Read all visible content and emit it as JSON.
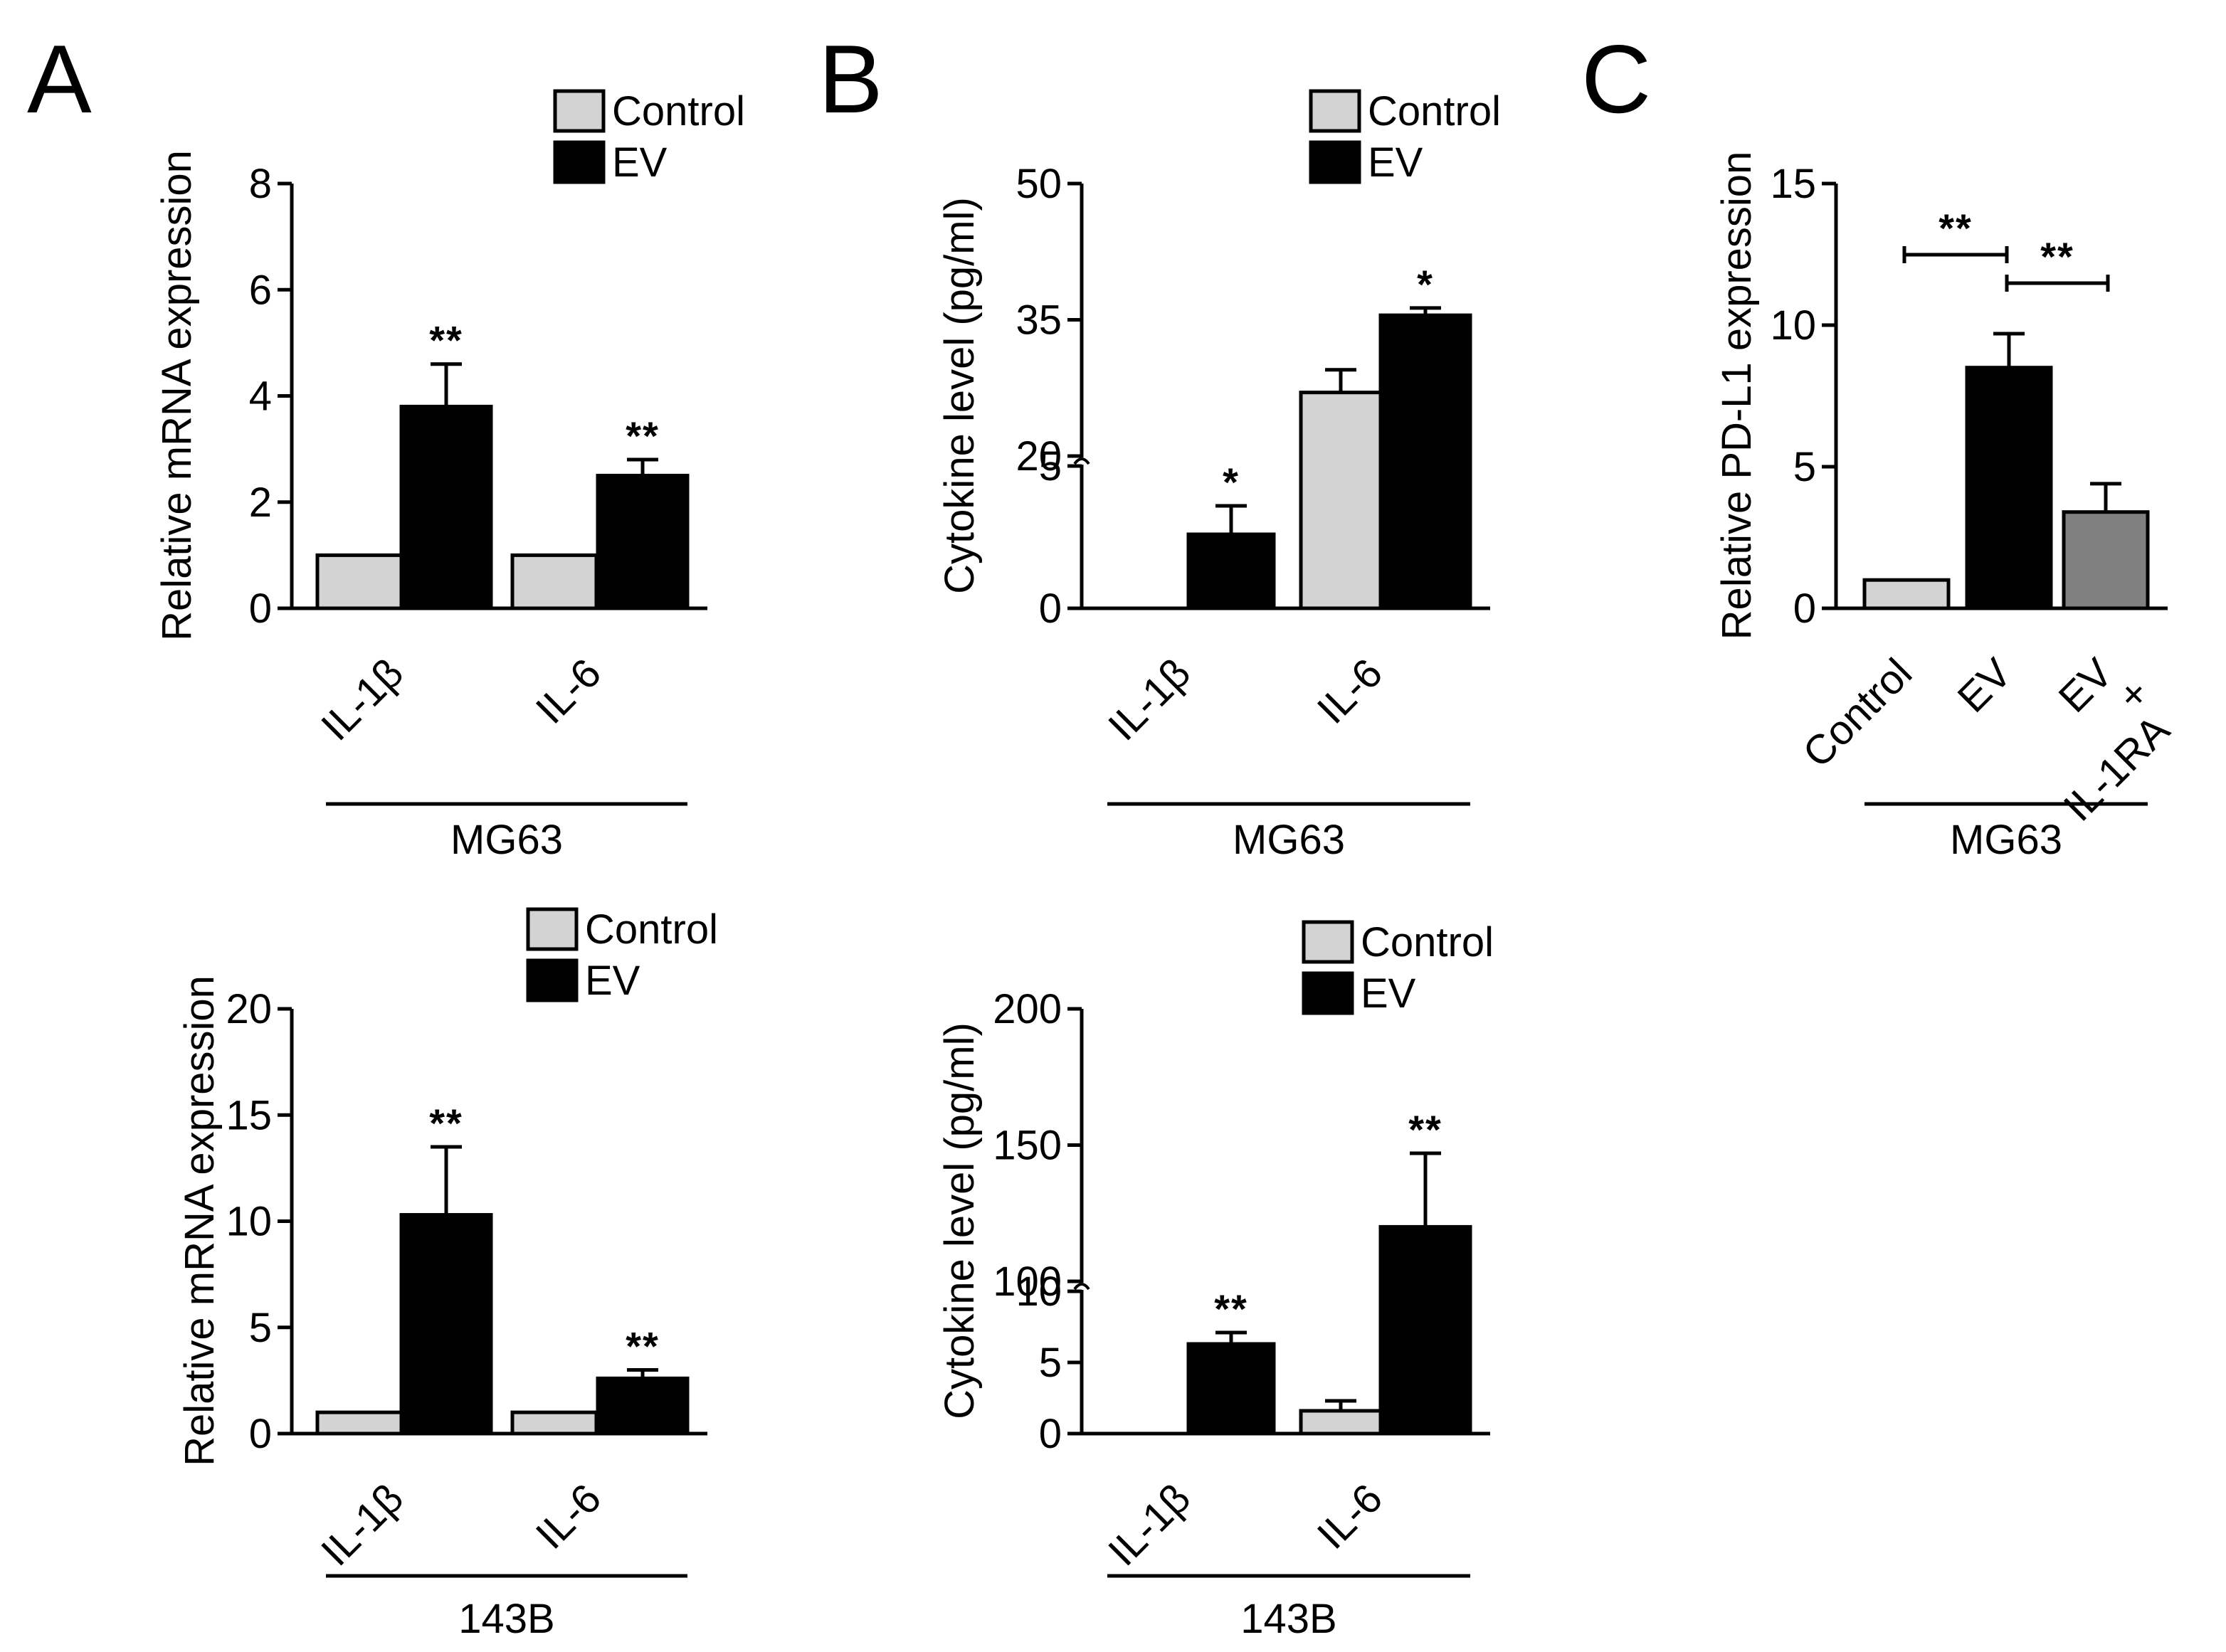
{
  "colors": {
    "control": "#d3d3d3",
    "ev": "#000000",
    "ev_il1ra": "#808080",
    "axis": "#000000"
  },
  "chart_data": [
    {
      "panel": "A",
      "panel_label": "A",
      "type": "bar",
      "title": "",
      "ylabel": "Relative mRNA expression",
      "group_label": "MG63",
      "categories": [
        "IL-1β",
        "IL-6"
      ],
      "ylim": [
        0,
        8
      ],
      "yticks": [
        0,
        2,
        4,
        6,
        8
      ],
      "legend": [
        "Control",
        "EV"
      ],
      "series": [
        {
          "name": "Control",
          "color_key": "control",
          "values": [
            1.0,
            1.0
          ],
          "errors": [
            0,
            0
          ]
        },
        {
          "name": "EV",
          "color_key": "ev",
          "values": [
            3.8,
            2.5
          ],
          "errors": [
            0.8,
            0.3
          ]
        }
      ],
      "significance": [
        {
          "category": "IL-1β",
          "series": "EV",
          "label": "**"
        },
        {
          "category": "IL-6",
          "series": "EV",
          "label": "**"
        }
      ]
    },
    {
      "panel": "A-bottom",
      "type": "bar",
      "title": "",
      "ylabel": "Relative mRNA expression",
      "group_label": "143B",
      "categories": [
        "IL-1β",
        "IL-6"
      ],
      "ylim": [
        0,
        20
      ],
      "yticks": [
        0,
        5,
        10,
        15,
        20
      ],
      "legend": [
        "Control",
        "EV"
      ],
      "series": [
        {
          "name": "Control",
          "color_key": "control",
          "values": [
            1.0,
            1.0
          ],
          "errors": [
            0,
            0
          ]
        },
        {
          "name": "EV",
          "color_key": "ev",
          "values": [
            10.3,
            2.6
          ],
          "errors": [
            3.2,
            0.4
          ]
        }
      ],
      "significance": [
        {
          "category": "IL-1β",
          "series": "EV",
          "label": "**"
        },
        {
          "category": "IL-6",
          "series": "EV",
          "label": "**"
        }
      ]
    },
    {
      "panel": "B",
      "panel_label": "B",
      "type": "bar",
      "title": "",
      "ylabel": "Cytokine level (pg/ml)",
      "group_label": "MG63",
      "categories": [
        "IL-1β",
        "IL-6"
      ],
      "ylim": [
        0,
        50
      ],
      "yticks": [
        0,
        5,
        20,
        35,
        50
      ],
      "axis_break": [
        5,
        20
      ],
      "legend": [
        "Control",
        "EV"
      ],
      "series": [
        {
          "name": "Control",
          "color_key": "control",
          "values": [
            0,
            27
          ],
          "errors": [
            0,
            2.5
          ]
        },
        {
          "name": "EV",
          "color_key": "ev",
          "values": [
            2.6,
            35.5
          ],
          "errors": [
            1.0,
            0.8
          ]
        }
      ],
      "significance": [
        {
          "category": "IL-1β",
          "series": "EV",
          "label": "*"
        },
        {
          "category": "IL-6",
          "series": "EV",
          "label": "*"
        }
      ]
    },
    {
      "panel": "B-bottom",
      "type": "bar",
      "title": "",
      "ylabel": "Cytokine level (pg/ml)",
      "group_label": "143B",
      "categories": [
        "IL-1β",
        "IL-6"
      ],
      "ylim": [
        0,
        200
      ],
      "yticks": [
        0,
        5,
        10,
        100,
        150,
        200
      ],
      "axis_break": [
        10,
        100
      ],
      "legend": [
        "Control",
        "EV"
      ],
      "series": [
        {
          "name": "Control",
          "color_key": "control",
          "values": [
            0,
            1.6
          ],
          "errors": [
            0,
            0.7
          ]
        },
        {
          "name": "EV",
          "color_key": "ev",
          "values": [
            6.3,
            120
          ],
          "errors": [
            0.8,
            27
          ]
        }
      ],
      "significance": [
        {
          "category": "IL-1β",
          "series": "EV",
          "label": "**"
        },
        {
          "category": "IL-6",
          "series": "EV",
          "label": "**"
        }
      ]
    },
    {
      "panel": "C",
      "panel_label": "C",
      "type": "bar",
      "title": "",
      "ylabel": "Relative PD-L1 expression",
      "group_label": "MG63",
      "categories": [
        "Control",
        "EV",
        "EV + IL-1RA"
      ],
      "category_lines": [
        [
          "Control"
        ],
        [
          "EV"
        ],
        [
          "EV",
          "+",
          "IL-1RA"
        ]
      ],
      "ylim": [
        0,
        15
      ],
      "yticks": [
        0,
        5,
        10,
        15
      ],
      "series": [
        {
          "name": "PD-L1",
          "values": [
            1.0,
            8.5,
            3.4
          ],
          "errors": [
            0,
            1.2,
            1.0
          ],
          "color_keys": [
            "control",
            "ev",
            "ev_il1ra"
          ]
        }
      ],
      "significance": [
        {
          "from": "Control",
          "to": "EV",
          "label": "**"
        },
        {
          "from": "EV",
          "to": "EV + IL-1RA",
          "label": "**"
        }
      ]
    }
  ]
}
